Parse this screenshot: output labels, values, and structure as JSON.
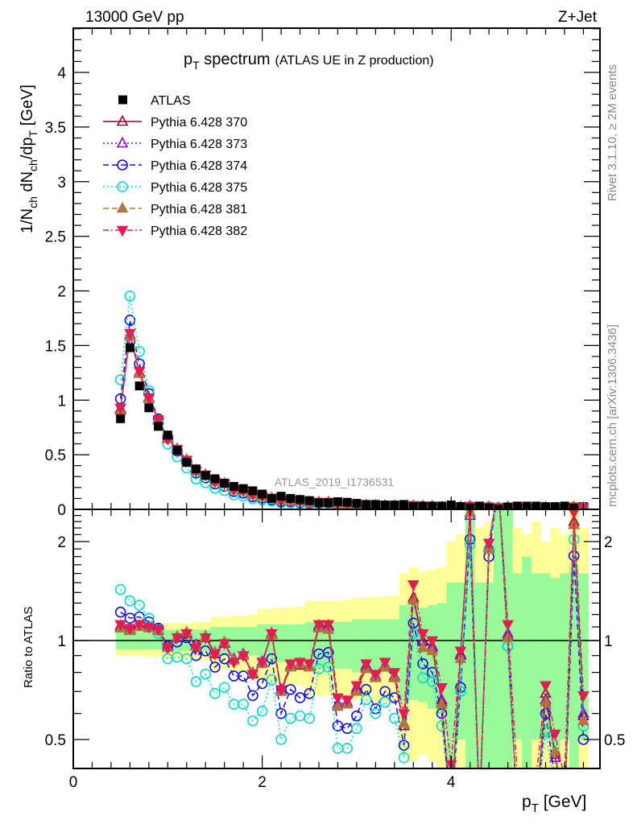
{
  "header": {
    "energy_label": "13000 GeV pp",
    "process_label": "Z+Jet"
  },
  "side_labels": {
    "rivet": "Rivet 3.1.10, ≥ 2M events",
    "source": "mcplots.cern.ch [arXiv:1306.3436]"
  },
  "watermark": "ATLAS_2019_I1736531",
  "chart_data": {
    "type": "line",
    "title": {
      "main": "p",
      "main_sub": "T",
      "main_rest": " spectrum",
      "note": "(ATLAS UE in Z production)"
    },
    "ylabel_parts": [
      "1/N",
      "ch",
      " dN",
      "ch",
      "/dp",
      "T",
      " [GeV]"
    ],
    "ratio_ylabel": "Ratio to ATLAS",
    "xlabel_parts": [
      "p",
      "T",
      " [GeV]"
    ],
    "xlim": [
      0,
      5.57
    ],
    "ylim": [
      0,
      4.4
    ],
    "ratio_ylim": [
      0.41,
      2.5
    ],
    "ratio_scale": "log",
    "x_ticks": [
      0,
      2,
      4
    ],
    "y_ticks": [
      0,
      0.5,
      1,
      1.5,
      2,
      2.5,
      3,
      3.5,
      4
    ],
    "ratio_ticks": [
      0.5,
      1,
      2
    ],
    "legend_position": "top-left",
    "x": [
      0.5,
      0.6,
      0.7,
      0.8,
      0.9,
      1.0,
      1.1,
      1.2,
      1.3,
      1.4,
      1.5,
      1.6,
      1.7,
      1.8,
      1.9,
      2.0,
      2.1,
      2.2,
      2.3,
      2.4,
      2.5,
      2.6,
      2.7,
      2.8,
      2.9,
      3.0,
      3.1,
      3.2,
      3.3,
      3.4,
      3.5,
      3.6,
      3.7,
      3.8,
      3.9,
      4.0,
      4.1,
      4.2,
      4.3,
      4.4,
      4.5,
      4.6,
      4.7,
      4.8,
      4.9,
      5.0,
      5.1,
      5.2,
      5.3,
      5.4
    ],
    "atlas": {
      "name": "ATLAS",
      "color": "#000000",
      "values": [
        0.83,
        1.48,
        1.13,
        0.93,
        0.76,
        0.68,
        0.54,
        0.43,
        0.37,
        0.31,
        0.28,
        0.24,
        0.21,
        0.19,
        0.17,
        0.14,
        0.1,
        0.12,
        0.1,
        0.09,
        0.08,
        0.06,
        0.06,
        0.07,
        0.065,
        0.055,
        0.045,
        0.045,
        0.04,
        0.04,
        0.045,
        0.025,
        0.03,
        0.03,
        0.03,
        0.04,
        0.025,
        0.012,
        0.03,
        0.012,
        0.005,
        0.02,
        0.03,
        0.03,
        0.03,
        0.025,
        0.025,
        0.03,
        0.01,
        0.025
      ]
    },
    "series": [
      {
        "name": "Pythia 6.428 370",
        "color": "#a0001e",
        "marker": "triangle-up-open",
        "line": "solid",
        "ratio": [
          1.11,
          1.08,
          1.11,
          1.1,
          1.08,
          0.96,
          1.02,
          1.05,
          0.96,
          1.02,
          0.91,
          0.98,
          0.87,
          0.9,
          0.79,
          0.86,
          1.05,
          0.7,
          0.83,
          0.84,
          0.83,
          1.11,
          1.11,
          0.63,
          0.64,
          0.71,
          0.83,
          0.77,
          0.83,
          0.77,
          0.55,
          1.35,
          1.0,
          0.96,
          0.65,
          0.3,
          0.91,
          2.45,
          0.3,
          1.92,
          3.0,
          1.03,
          0.3,
          0.3,
          0.3,
          0.69,
          0.45,
          0.3,
          2.3,
          0.59
        ]
      },
      {
        "name": "Pythia 6.428 373",
        "color": "#9000e0",
        "marker": "triangle-up-open",
        "line": "dotted",
        "ratio": [
          1.1,
          1.08,
          1.1,
          1.09,
          1.08,
          0.96,
          1.02,
          1.06,
          0.97,
          1.03,
          0.92,
          0.98,
          0.88,
          0.91,
          0.8,
          0.86,
          1.04,
          0.71,
          0.84,
          0.85,
          0.83,
          1.1,
          1.1,
          0.64,
          0.65,
          0.72,
          0.84,
          0.78,
          0.84,
          0.78,
          0.56,
          1.33,
          0.99,
          0.95,
          0.66,
          0.3,
          0.9,
          2.4,
          0.3,
          1.95,
          3.0,
          1.05,
          0.3,
          0.3,
          0.3,
          0.66,
          0.44,
          0.3,
          2.25,
          0.6
        ]
      },
      {
        "name": "Pythia 6.428 374",
        "color": "#1010e0",
        "marker": "circle-open",
        "line": "dashed",
        "ratio": [
          1.22,
          1.17,
          1.18,
          1.14,
          1.09,
          0.96,
          0.99,
          1.02,
          0.9,
          0.93,
          0.83,
          0.88,
          0.78,
          0.78,
          0.68,
          0.74,
          0.88,
          0.6,
          0.71,
          0.67,
          0.69,
          0.91,
          0.92,
          0.55,
          0.54,
          0.59,
          0.71,
          0.62,
          0.7,
          0.67,
          0.48,
          1.13,
          0.85,
          0.8,
          0.6,
          0.3,
          0.72,
          2.03,
          0.3,
          1.8,
          3.0,
          0.96,
          0.3,
          0.3,
          0.3,
          0.6,
          0.38,
          0.3,
          1.81,
          0.5
        ]
      },
      {
        "name": "Pythia 6.428 375",
        "color": "#10d8c8",
        "marker": "circle-open",
        "line": "dotted",
        "ratio": [
          1.43,
          1.32,
          1.28,
          1.17,
          1.05,
          0.88,
          0.89,
          0.88,
          0.75,
          0.79,
          0.69,
          0.72,
          0.64,
          0.64,
          0.57,
          0.61,
          0.76,
          0.5,
          0.58,
          0.59,
          0.58,
          0.82,
          0.83,
          0.47,
          0.47,
          0.54,
          0.66,
          0.6,
          0.65,
          0.58,
          0.44,
          1.05,
          0.77,
          0.75,
          0.55,
          0.3,
          0.7,
          1.96,
          0.3,
          1.9,
          3.0,
          0.96,
          0.3,
          0.3,
          0.3,
          0.53,
          0.36,
          0.3,
          2.03,
          0.55
        ]
      },
      {
        "name": "Pythia 6.428 381",
        "color": "#b07840",
        "marker": "triangle-up-filled",
        "line": "dashed",
        "ratio": [
          1.09,
          1.07,
          1.1,
          1.09,
          1.07,
          0.95,
          1.03,
          1.06,
          0.96,
          1.03,
          0.92,
          0.99,
          0.87,
          0.9,
          0.8,
          0.85,
          1.04,
          0.7,
          0.83,
          0.85,
          0.83,
          1.09,
          1.08,
          0.63,
          0.64,
          0.7,
          0.82,
          0.77,
          0.83,
          0.77,
          0.56,
          1.33,
          0.95,
          0.93,
          0.64,
          0.3,
          0.88,
          2.45,
          0.3,
          1.9,
          3.0,
          1.02,
          0.3,
          0.3,
          0.3,
          0.65,
          0.46,
          0.3,
          2.25,
          0.57
        ]
      },
      {
        "name": "Pythia 6.428 382",
        "color": "#e01e50",
        "marker": "triangle-down-filled",
        "line": "dashdot",
        "ratio": [
          1.12,
          1.09,
          1.12,
          1.1,
          1.08,
          0.95,
          1.02,
          1.05,
          0.95,
          1.02,
          0.91,
          0.98,
          0.86,
          0.9,
          0.79,
          0.86,
          1.05,
          0.71,
          0.85,
          0.86,
          0.85,
          1.12,
          1.12,
          0.67,
          0.66,
          0.73,
          0.85,
          0.79,
          0.86,
          0.8,
          0.6,
          1.48,
          1.05,
          1.0,
          0.72,
          0.42,
          0.93,
          2.5,
          0.3,
          1.98,
          3.0,
          1.12,
          0.39,
          0.3,
          0.38,
          0.73,
          0.52,
          0.38,
          2.45,
          0.68
        ]
      }
    ],
    "bands": {
      "green_color": "#99fa99",
      "yellow_color": "#fefe99",
      "green_hi": [
        1.06,
        1.06,
        1.06,
        1.06,
        1.06,
        1.08,
        1.08,
        1.08,
        1.08,
        1.08,
        1.1,
        1.1,
        1.1,
        1.1,
        1.1,
        1.12,
        1.12,
        1.12,
        1.12,
        1.12,
        1.14,
        1.14,
        1.14,
        1.14,
        1.14,
        1.16,
        1.16,
        1.16,
        1.16,
        1.16,
        1.28,
        1.3,
        1.26,
        1.28,
        1.3,
        1.5,
        1.5,
        2.5,
        1.5,
        1.5,
        2.5,
        2.5,
        1.6,
        1.8,
        1.6,
        1.6,
        1.55,
        1.6,
        1.7,
        1.6
      ],
      "green_lo": [
        0.94,
        0.94,
        0.94,
        0.94,
        0.94,
        0.93,
        0.93,
        0.93,
        0.93,
        0.93,
        0.9,
        0.9,
        0.9,
        0.9,
        0.9,
        0.86,
        0.86,
        0.86,
        0.86,
        0.86,
        0.82,
        0.82,
        0.82,
        0.82,
        0.82,
        0.8,
        0.8,
        0.8,
        0.8,
        0.8,
        0.65,
        0.66,
        0.65,
        0.62,
        0.6,
        0.41,
        0.5,
        0.41,
        0.41,
        0.41,
        0.41,
        0.41,
        0.5,
        0.41,
        0.5,
        0.5,
        0.45,
        0.5,
        0.41,
        0.5
      ],
      "yellow_hi": [
        1.08,
        1.08,
        1.09,
        1.09,
        1.1,
        1.13,
        1.13,
        1.13,
        1.14,
        1.14,
        1.18,
        1.18,
        1.19,
        1.19,
        1.2,
        1.25,
        1.25,
        1.26,
        1.26,
        1.27,
        1.32,
        1.32,
        1.32,
        1.32,
        1.33,
        1.35,
        1.35,
        1.36,
        1.36,
        1.37,
        1.6,
        1.67,
        1.62,
        1.64,
        1.67,
        2.0,
        2.1,
        2.5,
        2.2,
        2.3,
        2.5,
        2.5,
        2.2,
        2.1,
        2.3,
        2.0,
        2.2,
        2.1,
        2.5,
        2.2
      ],
      "yellow_lo": [
        0.9,
        0.9,
        0.9,
        0.89,
        0.89,
        0.88,
        0.88,
        0.88,
        0.87,
        0.87,
        0.82,
        0.82,
        0.81,
        0.81,
        0.8,
        0.75,
        0.75,
        0.74,
        0.74,
        0.73,
        0.68,
        0.68,
        0.68,
        0.67,
        0.67,
        0.66,
        0.66,
        0.65,
        0.65,
        0.64,
        0.45,
        0.43,
        0.45,
        0.43,
        0.41,
        0.41,
        0.41,
        0.41,
        0.41,
        0.41,
        0.41,
        0.41,
        0.41,
        0.41,
        0.41,
        0.41,
        0.41,
        0.41,
        0.41,
        0.41
      ]
    }
  }
}
